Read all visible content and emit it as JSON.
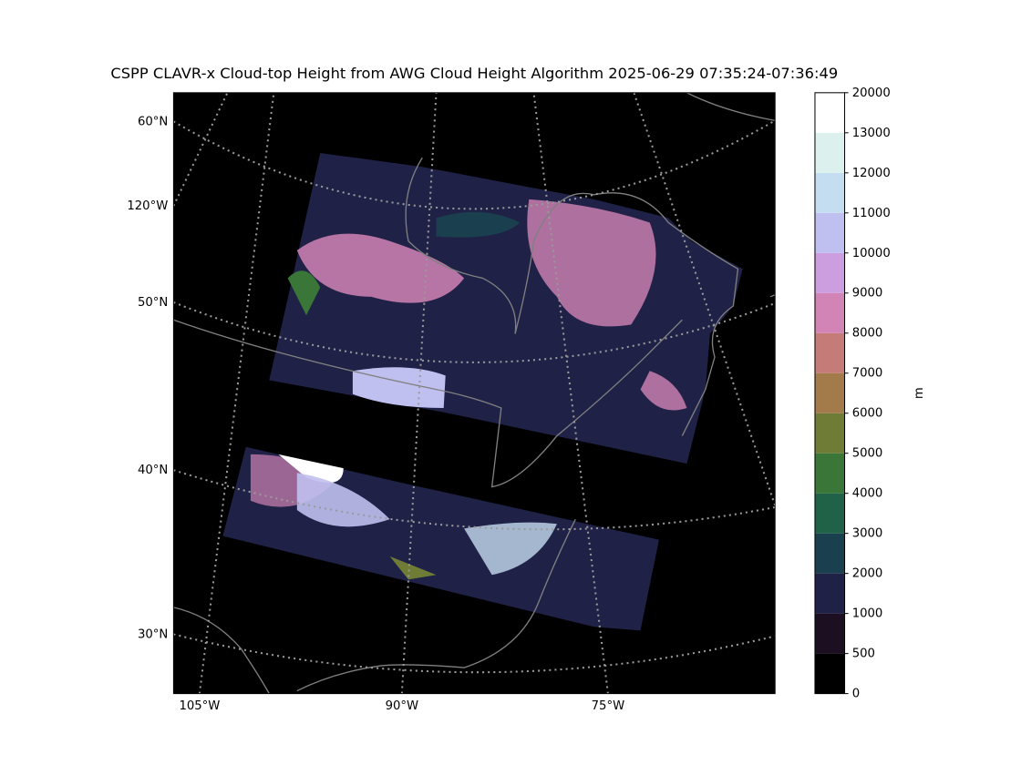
{
  "title": "CSPP CLAVR-x Cloud-top Height from AWG Cloud Height Algorithm 2025-06-29 07:35:24-07:36:49",
  "map": {
    "lat_labels": [
      "60°N",
      "120°W",
      "50°N",
      "40°N",
      "30°N"
    ],
    "lon_labels": [
      "105°W",
      "90°W",
      "75°W"
    ]
  },
  "colorbar": {
    "label": "m",
    "levels": [
      0,
      500,
      1000,
      2000,
      3000,
      4000,
      5000,
      6000,
      7000,
      8000,
      9000,
      10000,
      11000,
      12000,
      13000,
      20000
    ],
    "colors": [
      "#000000",
      "#1c0f22",
      "#1f2146",
      "#1a3f4e",
      "#1f6248",
      "#3a7637",
      "#6f7c35",
      "#a37a4a",
      "#c57b77",
      "#d184b5",
      "#cc9ee0",
      "#c0c0f0",
      "#c5ddf0",
      "#dcf1ee",
      "#ffffff"
    ]
  }
}
